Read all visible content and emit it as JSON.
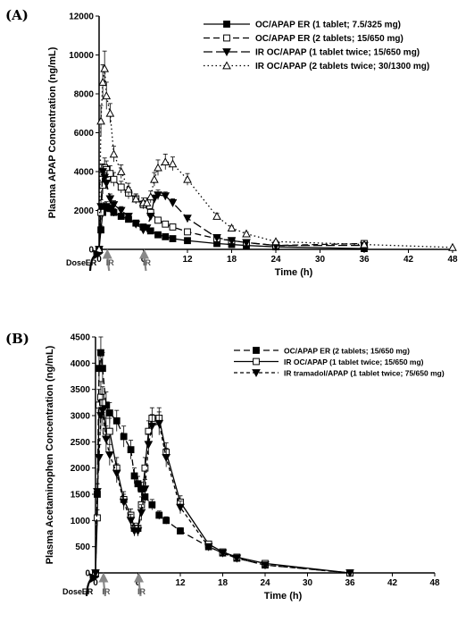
{
  "chart_data": [
    {
      "panel": "(A)",
      "type": "line",
      "xlabel": "Time (h)",
      "ylabel": "Plasma APAP Concentration (ng/mL)",
      "xlim": [
        0,
        48
      ],
      "ylim": [
        0,
        12000
      ],
      "xticks": [
        0,
        6,
        12,
        18,
        24,
        30,
        36,
        42,
        48
      ],
      "yticks": [
        0,
        2000,
        4000,
        6000,
        8000,
        10000,
        12000
      ],
      "legend_position": "top-right",
      "grid": false,
      "dose_markers": {
        "label": "Dose",
        "items": [
          {
            "label": "ER",
            "time": 0,
            "color": "#000000"
          },
          {
            "label": "IR",
            "time": 1,
            "color": "#888888"
          },
          {
            "label": "IR",
            "time": 6,
            "color": "#888888"
          }
        ]
      },
      "series": [
        {
          "name": "OC/APAP ER (1 tablet; 7.5/325 mg)",
          "marker": "square-filled",
          "line": "solid",
          "x": [
            0,
            0.25,
            0.5,
            0.75,
            1,
            1.5,
            2,
            3,
            4,
            5,
            6,
            7,
            8,
            9,
            10,
            12,
            16,
            18,
            20,
            24,
            36
          ],
          "y": [
            0,
            1000,
            1900,
            2150,
            2200,
            2100,
            1900,
            1700,
            1550,
            1350,
            1150,
            950,
            750,
            650,
            550,
            450,
            300,
            250,
            200,
            130,
            40
          ],
          "err": [
            0,
            200,
            250,
            250,
            250,
            200,
            200,
            150,
            150,
            150,
            120,
            100,
            90,
            80,
            70,
            60,
            40,
            30,
            30,
            20,
            10
          ]
        },
        {
          "name": "OC/APAP ER (2 tablets; 15/650 mg)",
          "marker": "square-open",
          "line": "dash",
          "x": [
            0,
            0.25,
            0.5,
            0.75,
            1,
            1.5,
            2,
            3,
            4,
            5,
            6,
            7,
            8,
            9,
            10,
            12,
            16,
            18,
            20,
            24,
            36
          ],
          "y": [
            0,
            1900,
            3300,
            4200,
            4100,
            3900,
            3600,
            3200,
            2900,
            2600,
            2300,
            1900,
            1500,
            1300,
            1150,
            900,
            550,
            450,
            350,
            200,
            300
          ],
          "err": [
            0,
            350,
            450,
            500,
            450,
            400,
            350,
            300,
            300,
            250,
            220,
            200,
            160,
            150,
            120,
            100,
            60,
            50,
            40,
            30,
            30
          ]
        },
        {
          "name": "IR OC/APAP (1 tablet twice; 15/650 mg)",
          "marker": "triangle-down-filled",
          "line": "longdash",
          "x": [
            0,
            0.25,
            0.5,
            0.75,
            1,
            1.5,
            2,
            3,
            4,
            5,
            6,
            6.5,
            7,
            7.5,
            8,
            9,
            10,
            12,
            16,
            18,
            20,
            24,
            36
          ],
          "y": [
            0,
            2200,
            4000,
            3700,
            3400,
            2600,
            2300,
            2000,
            1700,
            1300,
            1000,
            1100,
            1700,
            2600,
            2800,
            2750,
            2400,
            1600,
            600,
            450,
            350,
            200,
            200
          ],
          "err": [
            0,
            350,
            400,
            350,
            300,
            250,
            200,
            200,
            150,
            120,
            100,
            100,
            150,
            200,
            250,
            200,
            200,
            150,
            60,
            50,
            40,
            30,
            30
          ]
        },
        {
          "name": "IR OC/APAP (2 tablets twice; 30/1300 mg)",
          "marker": "triangle-up-open",
          "line": "dot",
          "x": [
            0,
            0.25,
            0.5,
            0.75,
            1,
            1.5,
            2,
            3,
            4,
            5,
            6,
            6.5,
            7,
            7.5,
            8,
            9,
            10,
            12,
            16,
            18,
            20,
            24,
            36,
            48
          ],
          "y": [
            0,
            6600,
            8600,
            9300,
            7900,
            7000,
            4900,
            4000,
            3100,
            2600,
            2400,
            2400,
            2700,
            3600,
            4200,
            4500,
            4400,
            3600,
            1700,
            1100,
            800,
            400,
            250,
            100
          ],
          "err": [
            0,
            800,
            900,
            900,
            700,
            500,
            400,
            350,
            300,
            250,
            250,
            250,
            300,
            350,
            400,
            400,
            350,
            300,
            150,
            100,
            80,
            50,
            40,
            20
          ]
        }
      ]
    },
    {
      "panel": "(B)",
      "type": "line",
      "xlabel": "Time (h)",
      "ylabel": "Plasma Acetaminophen Concentration (ng/mL)",
      "xlim": [
        0,
        48
      ],
      "ylim": [
        0,
        4500
      ],
      "xticks": [
        0,
        6,
        12,
        18,
        24,
        30,
        36,
        42,
        48
      ],
      "yticks": [
        0,
        500,
        1000,
        1500,
        2000,
        2500,
        3000,
        3500,
        4000,
        4500
      ],
      "legend_position": "top-right",
      "grid": false,
      "dose_markers": {
        "label": "Dose",
        "items": [
          {
            "label": "ER",
            "time": 0,
            "color": "#000000"
          },
          {
            "label": "IR",
            "time": 1,
            "color": "#888888"
          },
          {
            "label": "IR",
            "time": 6,
            "color": "#888888"
          }
        ]
      },
      "series": [
        {
          "name": "OC/APAP ER (2 tablets; 15/650 mg)",
          "marker": "square-filled",
          "line": "dash",
          "x": [
            0,
            0.25,
            0.5,
            0.75,
            1,
            1.5,
            2,
            3,
            4,
            5,
            5.5,
            6,
            6.5,
            7,
            8,
            9,
            10,
            12,
            16,
            18,
            20,
            24,
            36
          ],
          "y": [
            0,
            1500,
            3900,
            4200,
            3900,
            3200,
            3050,
            2900,
            2600,
            2350,
            1850,
            1700,
            1600,
            1450,
            1300,
            1100,
            1000,
            800,
            500,
            380,
            280,
            150,
            0
          ],
          "err": [
            0,
            200,
            350,
            300,
            300,
            250,
            200,
            200,
            200,
            180,
            150,
            140,
            130,
            120,
            100,
            80,
            70,
            60,
            40,
            30,
            25,
            20,
            0
          ]
        },
        {
          "name": "IR OC/APAP (1 tablet twice; 15/650 mg)",
          "marker": "square-open",
          "line": "solid",
          "x": [
            0,
            0.25,
            0.5,
            0.75,
            1,
            1.5,
            2,
            3,
            4,
            5,
            5.5,
            6,
            6.5,
            7,
            7.5,
            8,
            9,
            10,
            12,
            16,
            18,
            20,
            24,
            36
          ],
          "y": [
            0,
            1050,
            3200,
            3350,
            3250,
            2700,
            2700,
            2000,
            1400,
            1100,
            850,
            850,
            1300,
            2000,
            2700,
            2950,
            2950,
            2300,
            1350,
            550,
            400,
            300,
            180,
            0
          ],
          "err": [
            0,
            150,
            300,
            300,
            300,
            250,
            250,
            200,
            150,
            120,
            100,
            100,
            150,
            200,
            200,
            200,
            200,
            180,
            120,
            50,
            40,
            30,
            20,
            0
          ]
        },
        {
          "name": "IR tramadol/APAP (1 tablet twice; 75/650 mg)",
          "marker": "triangle-down-filled",
          "line": "shortdash",
          "x": [
            0,
            0.25,
            0.5,
            0.75,
            1,
            1.5,
            2,
            3,
            4,
            5,
            5.5,
            6,
            6.5,
            7,
            7.5,
            8,
            9,
            10,
            12,
            16,
            18,
            20,
            24,
            36
          ],
          "y": [
            0,
            1550,
            2200,
            3000,
            3100,
            2550,
            2250,
            1900,
            1350,
            1000,
            800,
            800,
            1150,
            1600,
            2450,
            2800,
            2850,
            2200,
            1250,
            500,
            380,
            280,
            150,
            0
          ],
          "err": [
            0,
            150,
            250,
            300,
            300,
            250,
            200,
            180,
            150,
            120,
            100,
            100,
            150,
            180,
            200,
            220,
            220,
            180,
            120,
            50,
            40,
            30,
            20,
            0
          ]
        }
      ]
    }
  ],
  "fonts_note_removed": true
}
